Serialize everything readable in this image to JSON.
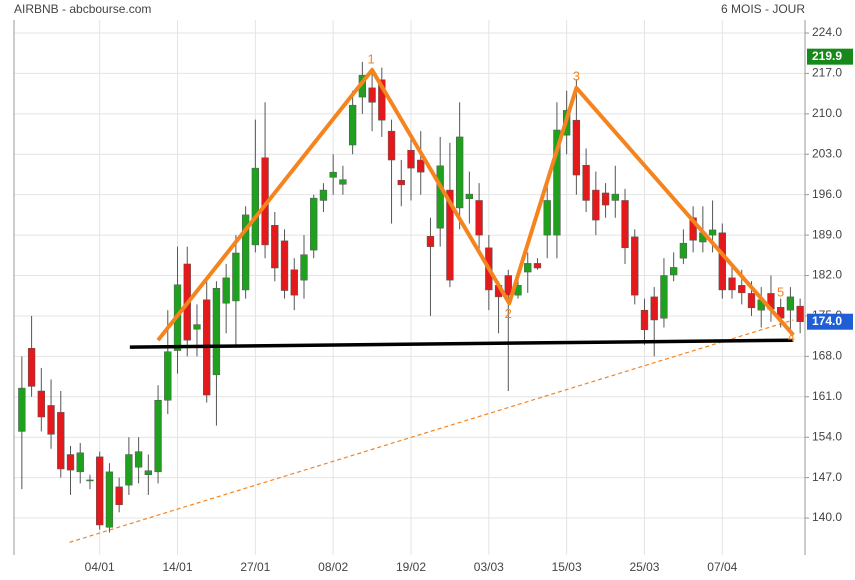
{
  "chart_data": {
    "type": "candlestick",
    "title": "AIRBNB - abcbourse.com",
    "subtitle": "6 MOIS - JOUR",
    "x": [
      null,
      null,
      null,
      null,
      null,
      null,
      null,
      null,
      "04/01",
      null,
      null,
      null,
      null,
      null,
      null,
      null,
      "14/01",
      null,
      null,
      null,
      null,
      null,
      null,
      null,
      "27/01",
      null,
      null,
      null,
      null,
      null,
      null,
      null,
      "08/02",
      null,
      null,
      null,
      null,
      null,
      null,
      null,
      "19/02",
      null,
      null,
      null,
      null,
      null,
      null,
      null,
      "03/03",
      null,
      null,
      null,
      null,
      null,
      null,
      null,
      "15/03",
      null,
      null,
      null,
      null,
      null,
      null,
      null,
      "25/03",
      null,
      null,
      null,
      null,
      null,
      null,
      null,
      "07/04",
      null,
      null,
      null,
      null,
      null,
      null,
      null,
      null
    ],
    "open": [
      155,
      169.4,
      162,
      159.5,
      158.3,
      151,
      148,
      146.5,
      150.6,
      138.4,
      145.4,
      145.7,
      148.8,
      147.5,
      148,
      160.4,
      169,
      184,
      172.7,
      177.8,
      164.8,
      177.2,
      177.6,
      179.5,
      187.3,
      202.4,
      190.7,
      188,
      183,
      181.2,
      186.4,
      195,
      199,
      197.8,
      204.6,
      212.9,
      214.5,
      215.9,
      207,
      198.5,
      203.7,
      202,
      188.8,
      190.2,
      196.8,
      193.7,
      195.3,
      195,
      186.8,
      180.3,
      182,
      178.6,
      182.6,
      184.1,
      189,
      189,
      206.3,
      208.9,
      201.1,
      196.8,
      196.3,
      195,
      195,
      188.7,
      176,
      178.3,
      174.6,
      182.1,
      185,
      192,
      187.8,
      189,
      189.4,
      181.6,
      180.3,
      178.9,
      176,
      178.9,
      176.5,
      176,
      176.7
    ],
    "high": [
      168,
      175,
      166,
      164,
      162,
      152.5,
      153,
      147.5,
      151.5,
      149.5,
      147,
      154,
      154,
      151,
      163,
      176,
      187,
      187,
      177,
      181,
      181,
      184,
      189,
      194,
      209,
      212,
      193,
      190,
      185,
      189,
      196,
      198,
      203,
      201,
      214,
      219,
      218,
      218,
      209,
      202,
      206,
      207,
      192,
      206,
      205,
      212,
      200,
      198,
      189,
      181,
      183,
      182,
      186,
      185,
      198,
      212,
      214,
      216,
      204,
      200,
      198,
      201,
      197,
      190,
      178,
      180,
      185,
      186,
      190,
      194,
      194,
      195,
      191,
      184,
      183,
      181,
      180,
      182,
      178,
      180,
      178
    ],
    "low": [
      145,
      161,
      155,
      152,
      147,
      144,
      146,
      145,
      138,
      137.5,
      141,
      144,
      146,
      144,
      146,
      158,
      165,
      168,
      168,
      160,
      156,
      172,
      170,
      178,
      186,
      185,
      181,
      178,
      176,
      178,
      185,
      193,
      196,
      196,
      203,
      210,
      207,
      206,
      191,
      194,
      195,
      196,
      175,
      187,
      180,
      190,
      191,
      186,
      176,
      172,
      162,
      178,
      179,
      183,
      185,
      185,
      203,
      196,
      193,
      189,
      192,
      192,
      184,
      177,
      170,
      168,
      173,
      181,
      184,
      186,
      186,
      186,
      178,
      178,
      177,
      175,
      173,
      174,
      173,
      172,
      172
    ],
    "close": [
      162.5,
      162.8,
      157.5,
      154.5,
      148.5,
      148.3,
      151.3,
      146.6,
      138.8,
      148,
      142.3,
      151,
      151.5,
      148.2,
      160.4,
      168.8,
      180.4,
      170.8,
      173.5,
      161.3,
      179.8,
      181.6,
      185.9,
      192.5,
      200.6,
      187.3,
      183.3,
      179.4,
      178.6,
      185.6,
      195.4,
      196.8,
      199.9,
      198.6,
      211.5,
      216.7,
      212,
      208.9,
      202,
      197.7,
      200.6,
      199.9,
      187,
      201,
      181.2,
      206,
      196.1,
      189,
      179.5,
      178.3,
      178.6,
      180.3,
      184.1,
      183.3,
      195,
      207.2,
      210.6,
      199.4,
      195,
      191.6,
      194.2,
      196.1,
      186.8,
      178.6,
      172.6,
      174.3,
      182,
      183.4,
      187.6,
      188.1,
      189.4,
      189.9,
      179.5,
      179.5,
      179,
      176.4,
      177.8,
      176.2,
      174.6,
      178.3,
      174
    ],
    "up_color": "#1fa01f",
    "down_color": "#e3191b",
    "ylim": [
      133.6,
      226.25
    ],
    "yticks": [
      {
        "value": 140,
        "label": "140.0"
      },
      {
        "value": 147,
        "label": "147.0"
      },
      {
        "value": 154,
        "label": "154.0"
      },
      {
        "value": 161,
        "label": "161.0"
      },
      {
        "value": 168,
        "label": "168.0"
      },
      {
        "value": 175,
        "label": "175.0"
      },
      {
        "value": 182,
        "label": "182.0"
      },
      {
        "value": 189,
        "label": "189.0"
      },
      {
        "value": 196,
        "label": "196.0"
      },
      {
        "value": 203,
        "label": "203.0"
      },
      {
        "value": 210,
        "label": "210.0"
      },
      {
        "value": 217,
        "label": "217.0"
      },
      {
        "value": 224,
        "label": "224.0"
      }
    ],
    "grid": true,
    "price_markers": [
      {
        "value": 219.9,
        "label": "219.9",
        "color": "#16891a"
      },
      {
        "value": 174.0,
        "label": "174.0",
        "color": "#1f5fd6"
      }
    ],
    "pattern": {
      "color": "#f5841f",
      "x": [
        14,
        36,
        50.1,
        57,
        79.3
      ],
      "y": [
        170.8,
        217.6,
        177.2,
        214.5,
        171.7
      ]
    },
    "pattern_labels": [
      {
        "text": "1",
        "x": 35.9,
        "y": 219.3
      },
      {
        "text": "2",
        "x": 50,
        "y": 175.2
      },
      {
        "text": "3",
        "x": 57,
        "y": 216.4
      },
      {
        "text": "4",
        "x": 79.1,
        "y": 171.2
      },
      {
        "text": "5",
        "x": 78,
        "y": 179
      }
    ],
    "neckline": {
      "color": "#000000",
      "x": [
        11.1,
        79.3
      ],
      "y": [
        169.6,
        170.8
      ]
    },
    "trendline": {
      "color": "#f5841f",
      "x": [
        4.9,
        79.3
      ],
      "y": [
        135.8,
        174.3
      ]
    }
  }
}
